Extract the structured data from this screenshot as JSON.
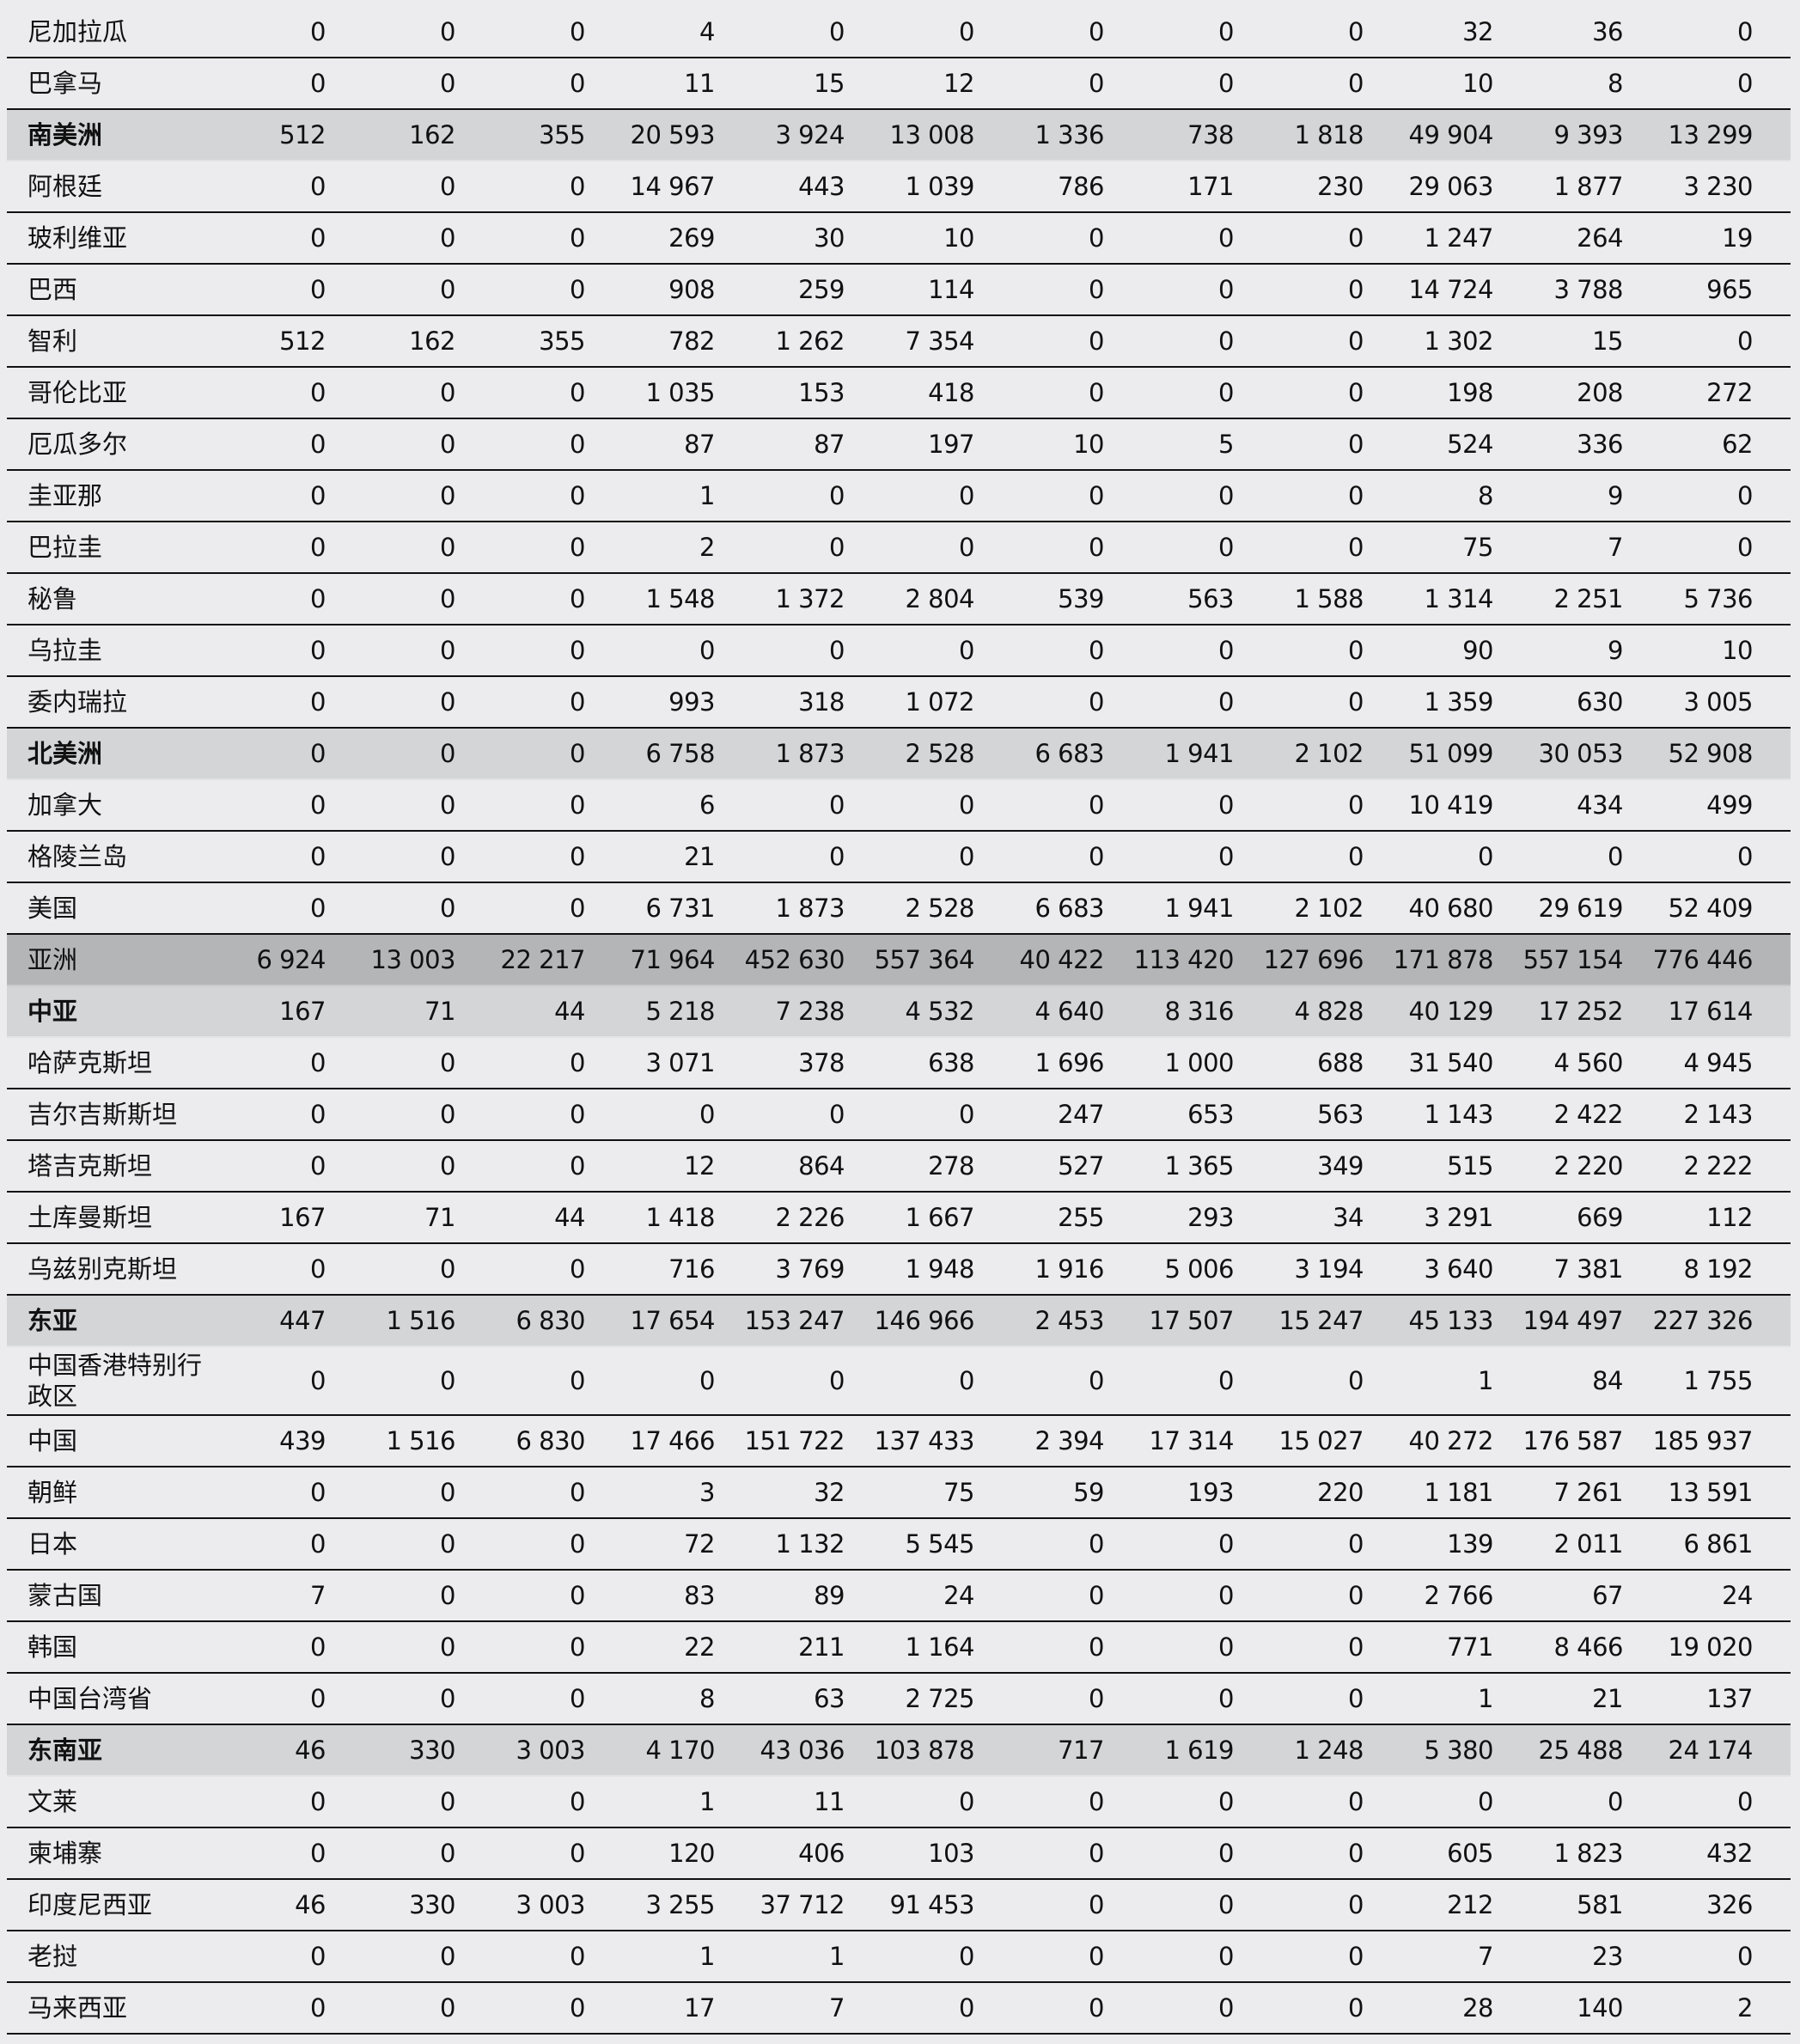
{
  "rows": [
    [
      "尼加拉瓜",
      "",
      "0",
      "0",
      "0",
      "4",
      "0",
      "0",
      "0",
      "0",
      "0",
      "32",
      "36",
      "0"
    ],
    [
      "巴拿马",
      "",
      "0",
      "0",
      "0",
      "11",
      "15",
      "12",
      "0",
      "0",
      "0",
      "10",
      "8",
      "0"
    ],
    [
      "南美洲",
      "region",
      "512",
      "162",
      "355",
      "20 593",
      "3 924",
      "13 008",
      "1 336",
      "738",
      "1 818",
      "49 904",
      "9 393",
      "13 299"
    ],
    [
      "阿根廷",
      "",
      "0",
      "0",
      "0",
      "14 967",
      "443",
      "1 039",
      "786",
      "171",
      "230",
      "29 063",
      "1 877",
      "3 230"
    ],
    [
      "玻利维亚",
      "",
      "0",
      "0",
      "0",
      "269",
      "30",
      "10",
      "0",
      "0",
      "0",
      "1 247",
      "264",
      "19"
    ],
    [
      "巴西",
      "",
      "0",
      "0",
      "0",
      "908",
      "259",
      "114",
      "0",
      "0",
      "0",
      "14 724",
      "3 788",
      "965"
    ],
    [
      "智利",
      "",
      "512",
      "162",
      "355",
      "782",
      "1 262",
      "7 354",
      "0",
      "0",
      "0",
      "1 302",
      "15",
      "0"
    ],
    [
      "哥伦比亚",
      "",
      "0",
      "0",
      "0",
      "1 035",
      "153",
      "418",
      "0",
      "0",
      "0",
      "198",
      "208",
      "272"
    ],
    [
      "厄瓜多尔",
      "",
      "0",
      "0",
      "0",
      "87",
      "87",
      "197",
      "10",
      "5",
      "0",
      "524",
      "336",
      "62"
    ],
    [
      "圭亚那",
      "",
      "0",
      "0",
      "0",
      "1",
      "0",
      "0",
      "0",
      "0",
      "0",
      "8",
      "9",
      "0"
    ],
    [
      "巴拉圭",
      "",
      "0",
      "0",
      "0",
      "2",
      "0",
      "0",
      "0",
      "0",
      "0",
      "75",
      "7",
      "0"
    ],
    [
      "秘鲁",
      "",
      "0",
      "0",
      "0",
      "1 548",
      "1 372",
      "2 804",
      "539",
      "563",
      "1 588",
      "1 314",
      "2 251",
      "5 736"
    ],
    [
      "乌拉圭",
      "",
      "0",
      "0",
      "0",
      "0",
      "0",
      "0",
      "0",
      "0",
      "0",
      "90",
      "9",
      "10"
    ],
    [
      "委内瑞拉",
      "",
      "0",
      "0",
      "0",
      "993",
      "318",
      "1 072",
      "0",
      "0",
      "0",
      "1 359",
      "630",
      "3 005"
    ],
    [
      "北美洲",
      "region",
      "0",
      "0",
      "0",
      "6 758",
      "1 873",
      "2 528",
      "6 683",
      "1 941",
      "2 102",
      "51 099",
      "30 053",
      "52 908"
    ],
    [
      "加拿大",
      "",
      "0",
      "0",
      "0",
      "6",
      "0",
      "0",
      "0",
      "0",
      "0",
      "10 419",
      "434",
      "499"
    ],
    [
      "格陵兰岛",
      "",
      "0",
      "0",
      "0",
      "21",
      "0",
      "0",
      "0",
      "0",
      "0",
      "0",
      "0",
      "0"
    ],
    [
      "美国",
      "",
      "0",
      "0",
      "0",
      "6 731",
      "1 873",
      "2 528",
      "6 683",
      "1 941",
      "2 102",
      "40 680",
      "29 619",
      "52 409"
    ],
    [
      "亚洲",
      "continent",
      "6 924",
      "13 003",
      "22 217",
      "71 964",
      "452 630",
      "557 364",
      "40 422",
      "113 420",
      "127 696",
      "171 878",
      "557 154",
      "776 446"
    ],
    [
      "中亚",
      "region",
      "167",
      "71",
      "44",
      "5 218",
      "7 238",
      "4 532",
      "4 640",
      "8 316",
      "4 828",
      "40 129",
      "17 252",
      "17 614"
    ],
    [
      "哈萨克斯坦",
      "",
      "0",
      "0",
      "0",
      "3 071",
      "378",
      "638",
      "1 696",
      "1 000",
      "688",
      "31 540",
      "4 560",
      "4 945"
    ],
    [
      "吉尔吉斯斯坦",
      "",
      "0",
      "0",
      "0",
      "0",
      "0",
      "0",
      "247",
      "653",
      "563",
      "1 143",
      "2 422",
      "2 143"
    ],
    [
      "塔吉克斯坦",
      "",
      "0",
      "0",
      "0",
      "12",
      "864",
      "278",
      "527",
      "1 365",
      "349",
      "515",
      "2 220",
      "2 222"
    ],
    [
      "土库曼斯坦",
      "",
      "167",
      "71",
      "44",
      "1 418",
      "2 226",
      "1 667",
      "255",
      "293",
      "34",
      "3 291",
      "669",
      "112"
    ],
    [
      "乌兹别克斯坦",
      "",
      "0",
      "0",
      "0",
      "716",
      "3 769",
      "1 948",
      "1 916",
      "5 006",
      "3 194",
      "3 640",
      "7 381",
      "8 192"
    ],
    [
      "东亚",
      "region",
      "447",
      "1 516",
      "6 830",
      "17 654",
      "153 247",
      "146 966",
      "2 453",
      "17 507",
      "15 247",
      "45 133",
      "194 497",
      "227 326"
    ],
    [
      "中国香港特别行政区",
      "tall",
      "0",
      "0",
      "0",
      "0",
      "0",
      "0",
      "0",
      "0",
      "0",
      "1",
      "84",
      "1 755"
    ],
    [
      "中国",
      "",
      "439",
      "1 516",
      "6 830",
      "17 466",
      "151 722",
      "137 433",
      "2 394",
      "17 314",
      "15 027",
      "40 272",
      "176 587",
      "185 937"
    ],
    [
      "朝鲜",
      "",
      "0",
      "0",
      "0",
      "3",
      "32",
      "75",
      "59",
      "193",
      "220",
      "1 181",
      "7 261",
      "13 591"
    ],
    [
      "日本",
      "",
      "0",
      "0",
      "0",
      "72",
      "1 132",
      "5 545",
      "0",
      "0",
      "0",
      "139",
      "2 011",
      "6 861"
    ],
    [
      "蒙古国",
      "",
      "7",
      "0",
      "0",
      "83",
      "89",
      "24",
      "0",
      "0",
      "0",
      "2 766",
      "67",
      "24"
    ],
    [
      "韩国",
      "",
      "0",
      "0",
      "0",
      "22",
      "211",
      "1 164",
      "0",
      "0",
      "0",
      "771",
      "8 466",
      "19 020"
    ],
    [
      "中国台湾省",
      "",
      "0",
      "0",
      "0",
      "8",
      "63",
      "2 725",
      "0",
      "0",
      "0",
      "1",
      "21",
      "137"
    ],
    [
      "东南亚",
      "region",
      "46",
      "330",
      "3 003",
      "4 170",
      "43 036",
      "103 878",
      "717",
      "1 619",
      "1 248",
      "5 380",
      "25 488",
      "24 174"
    ],
    [
      "文莱",
      "",
      "0",
      "0",
      "0",
      "1",
      "11",
      "0",
      "0",
      "0",
      "0",
      "0",
      "0",
      "0"
    ],
    [
      "柬埔寨",
      "",
      "0",
      "0",
      "0",
      "120",
      "406",
      "103",
      "0",
      "0",
      "0",
      "605",
      "1 823",
      "432"
    ],
    [
      "印度尼西亚",
      "",
      "46",
      "330",
      "3 003",
      "3 255",
      "37 712",
      "91 453",
      "0",
      "0",
      "0",
      "212",
      "581",
      "326"
    ],
    [
      "老挝",
      "",
      "0",
      "0",
      "0",
      "1",
      "1",
      "0",
      "0",
      "0",
      "0",
      "7",
      "23",
      "0"
    ],
    [
      "马来西亚",
      "",
      "0",
      "0",
      "0",
      "17",
      "7",
      "0",
      "0",
      "0",
      "0",
      "28",
      "140",
      "2"
    ]
  ]
}
